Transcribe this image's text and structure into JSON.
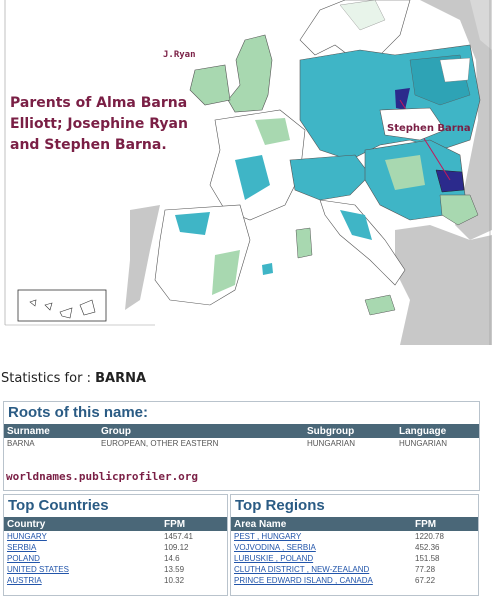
{
  "map": {
    "caption_lines": [
      "Parents of Alma Barna",
      "Elliott; Josephine Ryan",
      "and Stephen Barna."
    ],
    "label_j_ryan": "J.Ryan",
    "label_stephen": "Stephen Barna"
  },
  "stats": {
    "prefix": "Statistics for :",
    "surname": "BARNA"
  },
  "roots": {
    "title": "Roots of this name:",
    "headers": [
      "Surname",
      "Group",
      "Subgroup",
      "Language"
    ],
    "row": [
      "BARNA",
      "EUROPEAN, OTHER EASTERN",
      "HUNGARIAN",
      "HUNGARIAN"
    ],
    "site": "worldnames.publicprofiler.org"
  },
  "countries": {
    "title": "Top Countries",
    "headers": [
      "Country",
      "FPM"
    ],
    "rows": [
      [
        "HUNGARY",
        "1457.41"
      ],
      [
        "SERBIA",
        "109.12"
      ],
      [
        "POLAND",
        "14.6"
      ],
      [
        "UNITED STATES",
        "13.59"
      ],
      [
        "AUSTRIA",
        "10.32"
      ]
    ]
  },
  "regions": {
    "title": "Top Regions",
    "headers": [
      "Area Name",
      "FPM"
    ],
    "rows": [
      [
        "PEST , HUNGARY",
        "1220.78"
      ],
      [
        "VOJVODINA , SERBIA",
        "452.36"
      ],
      [
        "LUBUSKIE , POLAND",
        "151.58"
      ],
      [
        "CLUTHA DISTRICT , NEW-ZEALAND",
        "77.28"
      ],
      [
        "PRINCE EDWARD ISLAND , CANADA",
        "67.22"
      ]
    ]
  },
  "colors": {
    "teal": "#3fb5c6",
    "light_green": "#a8d8b0",
    "navy": "#2b2a8c",
    "sea": "#ffffff",
    "land_outside": "#c8c8c8",
    "label": "#7a1f45"
  }
}
